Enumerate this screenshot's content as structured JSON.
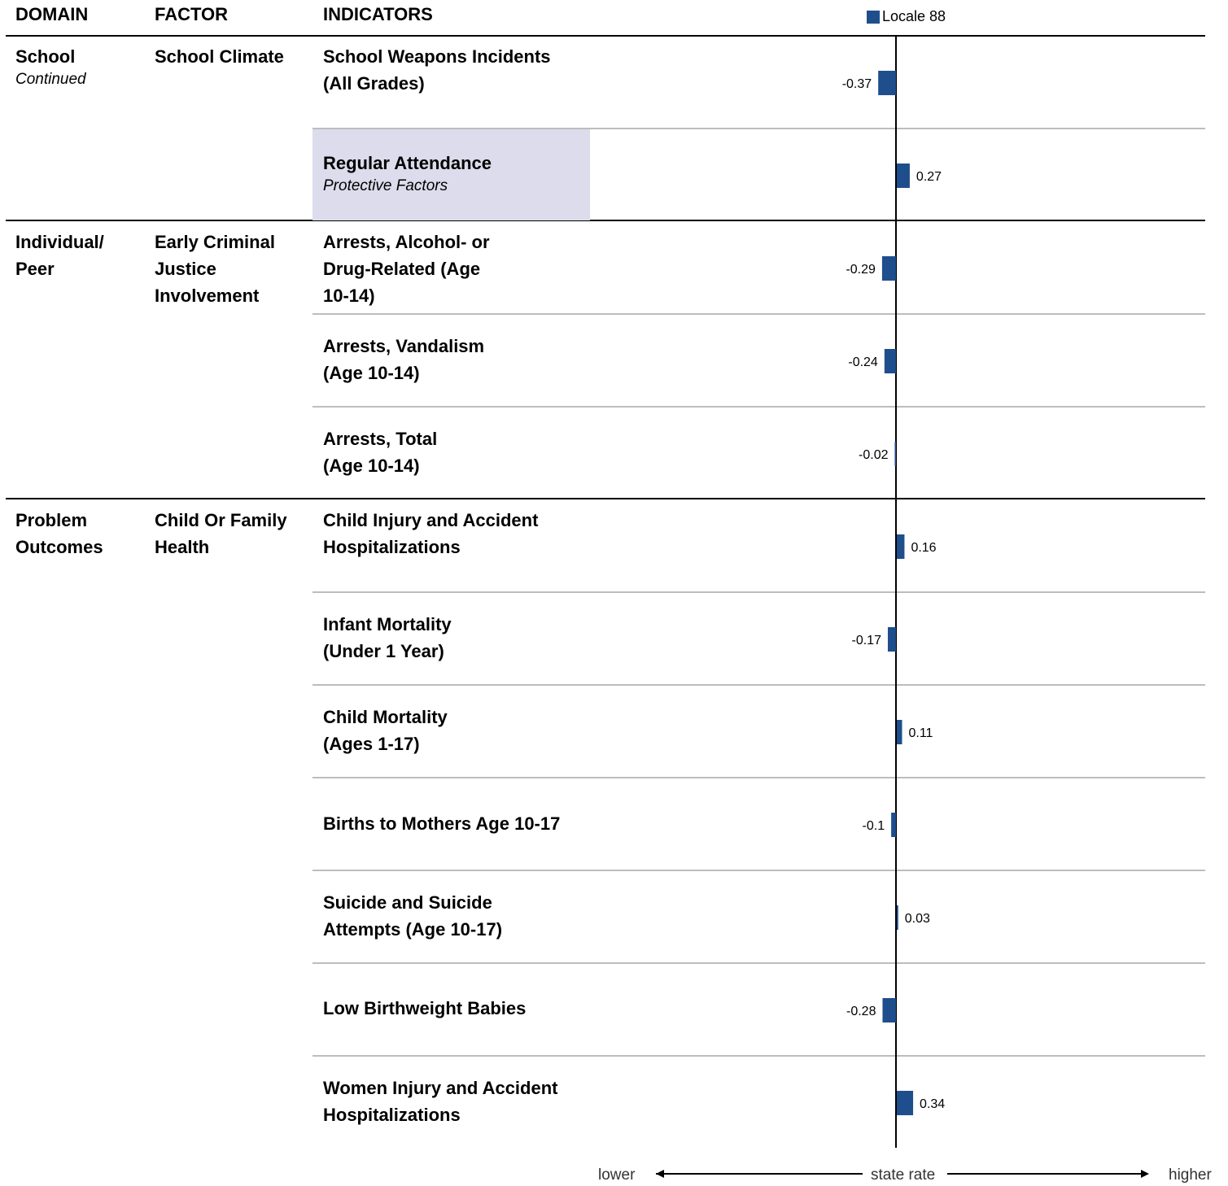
{
  "headers": {
    "domain": "DOMAIN",
    "factor": "FACTOR",
    "indicators": "INDICATORS"
  },
  "legend": {
    "label": "Locale 88",
    "color": "#1f4e8c"
  },
  "domains": [
    {
      "name": "School",
      "note": "Continued"
    },
    {
      "name": "Individual/ Peer",
      "note": ""
    },
    {
      "name": "Problem Outcomes",
      "note": ""
    }
  ],
  "factors": [
    {
      "name": "School Climate"
    },
    {
      "name": "Early Criminal Justice Involvement"
    },
    {
      "name": "Child Or Family Health"
    }
  ],
  "indicators": [
    {
      "label": "School Weapons Incidents (All Grades)",
      "note": ""
    },
    {
      "label": "Regular Attendance",
      "note": "Protective Factors"
    },
    {
      "label": "Arrests, Alcohol- or Drug-Related (Age 10-14)",
      "note": ""
    },
    {
      "label": "Arrests, Vandalism (Age 10-14)",
      "note": ""
    },
    {
      "label": "Arrests, Total (Age 10-14)",
      "note": ""
    },
    {
      "label": "Child Injury and Accident Hospitalizations",
      "note": ""
    },
    {
      "label": "Infant Mortality (Under 1 Year)",
      "note": ""
    },
    {
      "label": "Child Mortality (Ages 1-17)",
      "note": ""
    },
    {
      "label": "Births to Mothers Age 10-17",
      "note": ""
    },
    {
      "label": "Suicide and Suicide Attempts (Age 10-17)",
      "note": ""
    },
    {
      "label": "Low Birthweight Babies",
      "note": ""
    },
    {
      "label": "Women Injury and Accident Hospitalizations",
      "note": ""
    }
  ],
  "axis": {
    "lower": "lower",
    "center": "state rate",
    "higher": "higher"
  },
  "chart_data": {
    "type": "bar",
    "orientation": "horizontal",
    "categories": [
      "School Weapons Incidents (All Grades)",
      "Regular Attendance",
      "Arrests, Alcohol- or Drug-Related (Age 10-14)",
      "Arrests, Vandalism (Age 10-14)",
      "Arrests, Total (Age 10-14)",
      "Child Injury and Accident Hospitalizations",
      "Infant Mortality (Under 1 Year)",
      "Child Mortality (Ages 1-17)",
      "Births to Mothers Age 10-17",
      "Suicide and Suicide Attempts (Age 10-17)",
      "Low Birthweight Babies",
      "Women Injury and Accident Hospitalizations"
    ],
    "series": [
      {
        "name": "Locale 88",
        "values": [
          -0.37,
          0.27,
          -0.29,
          -0.24,
          -0.02,
          0.16,
          -0.17,
          0.11,
          -0.1,
          0.03,
          -0.28,
          0.34
        ],
        "labels": [
          "-0.37",
          "0.27",
          "-0.29",
          "-0.24",
          "-0.02",
          "0.16",
          "-0.17",
          "0.11",
          "-0.1",
          "0.03",
          "-0.28",
          "0.34"
        ]
      }
    ],
    "xlabel": "state rate",
    "baseline": 0,
    "legend": "top",
    "grid": false
  }
}
